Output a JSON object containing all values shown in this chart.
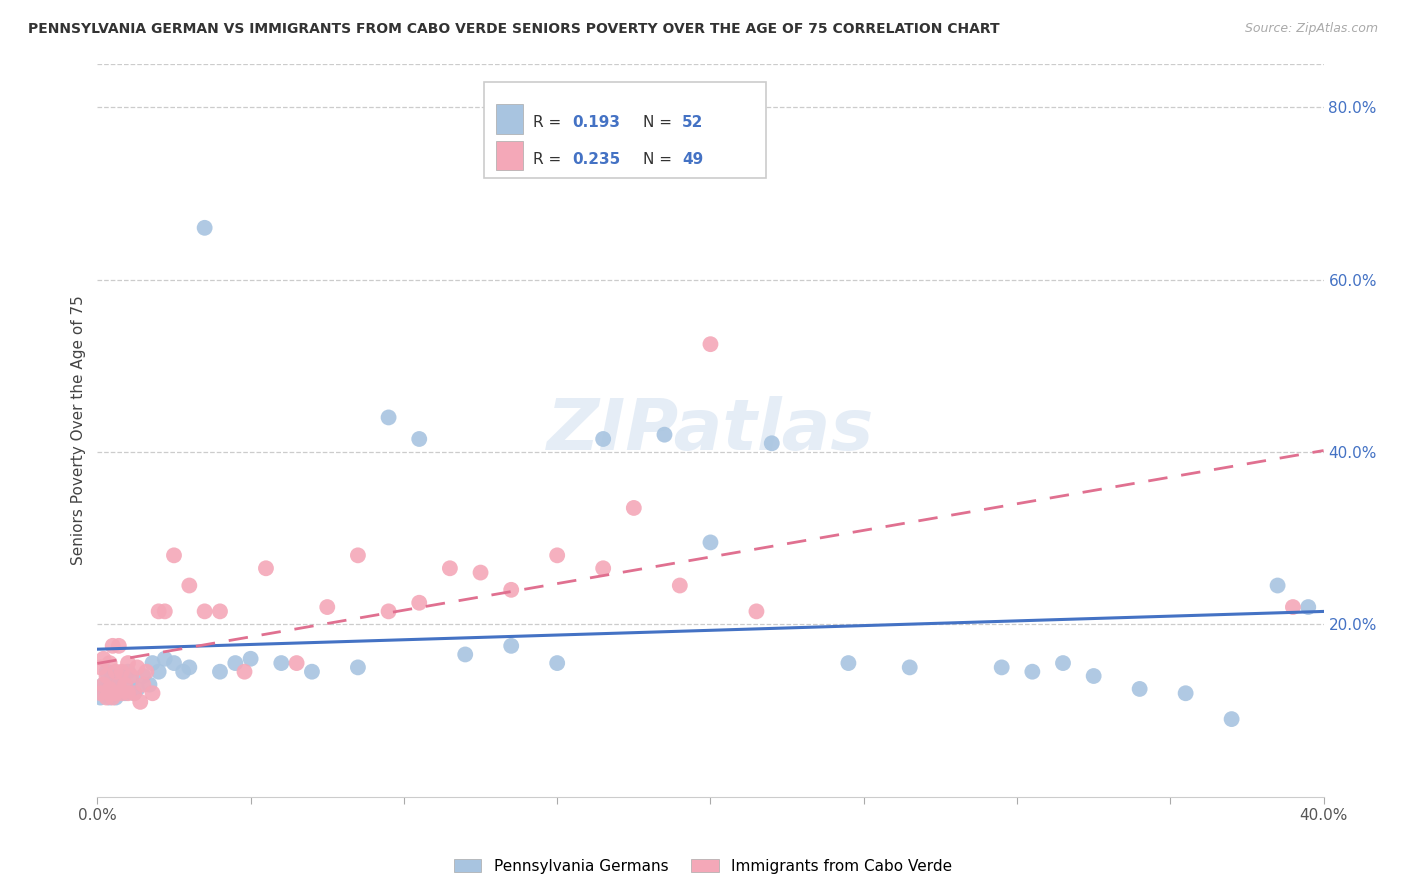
{
  "title": "PENNSYLVANIA GERMAN VS IMMIGRANTS FROM CABO VERDE SENIORS POVERTY OVER THE AGE OF 75 CORRELATION CHART",
  "source": "Source: ZipAtlas.com",
  "ylabel": "Seniors Poverty Over the Age of 75",
  "legend_label_1": "Pennsylvania Germans",
  "legend_label_2": "Immigrants from Cabo Verde",
  "R1": 0.193,
  "N1": 52,
  "R2": 0.235,
  "N2": 49,
  "color1": "#a8c4e0",
  "color2": "#f4a8b8",
  "trendline1_color": "#4472c4",
  "trendline2_color": "#e07090",
  "xlim": [
    0,
    0.4
  ],
  "ylim": [
    0,
    0.85
  ],
  "yticks_right": [
    0.2,
    0.4,
    0.6,
    0.8
  ],
  "blue_x": [
    0.001,
    0.002,
    0.002,
    0.003,
    0.003,
    0.004,
    0.004,
    0.005,
    0.005,
    0.006,
    0.007,
    0.008,
    0.009,
    0.01,
    0.011,
    0.012,
    0.013,
    0.015,
    0.017,
    0.018,
    0.02,
    0.022,
    0.025,
    0.028,
    0.03,
    0.035,
    0.04,
    0.045,
    0.05,
    0.06,
    0.07,
    0.085,
    0.095,
    0.105,
    0.12,
    0.135,
    0.15,
    0.165,
    0.185,
    0.2,
    0.22,
    0.245,
    0.265,
    0.295,
    0.305,
    0.315,
    0.325,
    0.34,
    0.355,
    0.37,
    0.385,
    0.395
  ],
  "blue_y": [
    0.115,
    0.13,
    0.125,
    0.145,
    0.12,
    0.135,
    0.115,
    0.14,
    0.13,
    0.115,
    0.125,
    0.14,
    0.12,
    0.145,
    0.135,
    0.12,
    0.125,
    0.14,
    0.13,
    0.155,
    0.145,
    0.16,
    0.155,
    0.145,
    0.15,
    0.66,
    0.145,
    0.155,
    0.16,
    0.155,
    0.145,
    0.15,
    0.44,
    0.415,
    0.165,
    0.175,
    0.155,
    0.415,
    0.42,
    0.295,
    0.41,
    0.155,
    0.15,
    0.15,
    0.145,
    0.155,
    0.14,
    0.125,
    0.12,
    0.09,
    0.245,
    0.22
  ],
  "pink_x": [
    0.001,
    0.001,
    0.002,
    0.002,
    0.003,
    0.003,
    0.004,
    0.004,
    0.005,
    0.005,
    0.006,
    0.006,
    0.007,
    0.007,
    0.008,
    0.008,
    0.009,
    0.01,
    0.01,
    0.011,
    0.012,
    0.013,
    0.014,
    0.015,
    0.016,
    0.018,
    0.02,
    0.022,
    0.025,
    0.03,
    0.035,
    0.04,
    0.048,
    0.055,
    0.065,
    0.075,
    0.085,
    0.095,
    0.105,
    0.115,
    0.125,
    0.135,
    0.15,
    0.165,
    0.175,
    0.19,
    0.2,
    0.215,
    0.39
  ],
  "pink_y": [
    0.12,
    0.15,
    0.13,
    0.16,
    0.115,
    0.14,
    0.125,
    0.155,
    0.115,
    0.175,
    0.12,
    0.145,
    0.13,
    0.175,
    0.12,
    0.145,
    0.13,
    0.12,
    0.155,
    0.14,
    0.12,
    0.15,
    0.11,
    0.13,
    0.145,
    0.12,
    0.215,
    0.215,
    0.28,
    0.245,
    0.215,
    0.215,
    0.145,
    0.265,
    0.155,
    0.22,
    0.28,
    0.215,
    0.225,
    0.265,
    0.26,
    0.24,
    0.28,
    0.265,
    0.335,
    0.245,
    0.525,
    0.215,
    0.22
  ]
}
